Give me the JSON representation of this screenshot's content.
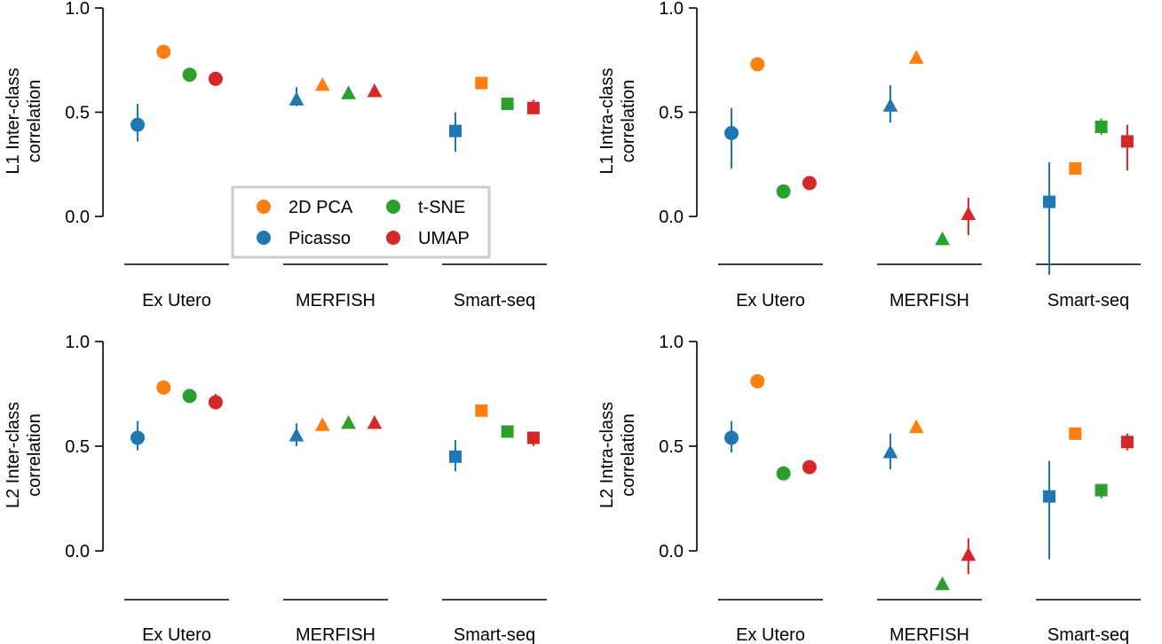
{
  "colors": {
    "2D PCA": "#ff7f0e",
    "t-SNE": "#2ca02c",
    "Picasso": "#1f77b4",
    "UMAP": "#d62728"
  },
  "chart_data": {
    "type": "scatter",
    "categories": [
      "Ex Utero",
      "MERFISH",
      "Smart-seq"
    ],
    "methods": [
      "Picasso",
      "2D PCA",
      "t-SNE",
      "UMAP"
    ],
    "category_markers": [
      "circle",
      "triangle",
      "square"
    ],
    "legend": {
      "placement": "lower-center-of-top-left-panel",
      "entries": [
        "2D PCA",
        "t-SNE",
        "Picasso",
        "UMAP"
      ]
    },
    "yticks": [
      "0.0",
      "0.5",
      "1.0"
    ],
    "ylim": [
      0,
      1
    ],
    "panels": [
      {
        "ylabel": [
          "L1 Inter-class",
          "correlation"
        ],
        "series": [
          {
            "name": "Picasso",
            "values": [
              0.44,
              0.56,
              0.41
            ],
            "err": [
              [
                0.36,
                0.54
              ],
              [
                0.53,
                0.62
              ],
              [
                0.31,
                0.5
              ]
            ]
          },
          {
            "name": "2D PCA",
            "values": [
              0.79,
              0.63,
              0.64
            ],
            "err": [
              null,
              null,
              null
            ]
          },
          {
            "name": "t-SNE",
            "values": [
              0.68,
              0.59,
              0.54
            ],
            "err": [
              null,
              null,
              null
            ]
          },
          {
            "name": "UMAP",
            "values": [
              0.66,
              0.6,
              0.52
            ],
            "err": [
              null,
              null,
              [
                0.49,
                0.56
              ]
            ]
          }
        ]
      },
      {
        "ylabel": [
          "L1 Intra-class",
          "correlation"
        ],
        "series": [
          {
            "name": "Picasso",
            "values": [
              0.4,
              0.53,
              0.07
            ],
            "err": [
              [
                0.23,
                0.52
              ],
              [
                0.45,
                0.63
              ],
              [
                -0.28,
                0.26
              ]
            ]
          },
          {
            "name": "2D PCA",
            "values": [
              0.73,
              0.76,
              0.23
            ],
            "err": [
              null,
              null,
              null
            ]
          },
          {
            "name": "t-SNE",
            "values": [
              0.12,
              -0.11,
              0.43
            ],
            "err": [
              null,
              null,
              [
                0.39,
                0.47
              ]
            ]
          },
          {
            "name": "UMAP",
            "values": [
              0.16,
              0.01,
              0.36
            ],
            "err": [
              null,
              [
                -0.09,
                0.09
              ],
              [
                0.22,
                0.44
              ]
            ]
          }
        ]
      },
      {
        "ylabel": [
          "L2 Inter-class",
          "correlation"
        ],
        "series": [
          {
            "name": "Picasso",
            "values": [
              0.54,
              0.55,
              0.45
            ],
            "err": [
              [
                0.48,
                0.62
              ],
              [
                0.5,
                0.61
              ],
              [
                0.38,
                0.53
              ]
            ]
          },
          {
            "name": "2D PCA",
            "values": [
              0.78,
              0.6,
              0.67
            ],
            "err": [
              null,
              null,
              null
            ]
          },
          {
            "name": "t-SNE",
            "values": [
              0.74,
              0.61,
              0.57
            ],
            "err": [
              null,
              null,
              null
            ]
          },
          {
            "name": "UMAP",
            "values": [
              0.71,
              0.61,
              0.54
            ],
            "err": [
              [
                0.68,
                0.75
              ],
              null,
              [
                0.5,
                0.56
              ]
            ]
          }
        ]
      },
      {
        "ylabel": [
          "L2 Intra-class",
          "correlation"
        ],
        "series": [
          {
            "name": "Picasso",
            "values": [
              0.54,
              0.47,
              0.26
            ],
            "err": [
              [
                0.47,
                0.62
              ],
              [
                0.39,
                0.56
              ],
              [
                -0.04,
                0.43
              ]
            ]
          },
          {
            "name": "2D PCA",
            "values": [
              0.81,
              0.59,
              0.56
            ],
            "err": [
              null,
              null,
              null
            ]
          },
          {
            "name": "t-SNE",
            "values": [
              0.37,
              -0.16,
              0.29
            ],
            "err": [
              null,
              null,
              [
                0.25,
                0.31
              ]
            ]
          },
          {
            "name": "UMAP",
            "values": [
              0.4,
              -0.02,
              0.52
            ],
            "err": [
              null,
              [
                -0.11,
                0.06
              ],
              [
                0.48,
                0.56
              ]
            ]
          }
        ]
      }
    ]
  }
}
